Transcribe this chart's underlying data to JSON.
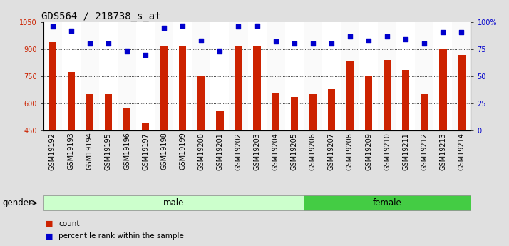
{
  "title": "GDS564 / 218738_s_at",
  "samples": [
    "GSM19192",
    "GSM19193",
    "GSM19194",
    "GSM19195",
    "GSM19196",
    "GSM19197",
    "GSM19198",
    "GSM19199",
    "GSM19200",
    "GSM19201",
    "GSM19202",
    "GSM19203",
    "GSM19204",
    "GSM19205",
    "GSM19206",
    "GSM19207",
    "GSM19208",
    "GSM19209",
    "GSM19210",
    "GSM19211",
    "GSM19212",
    "GSM19213",
    "GSM19214"
  ],
  "bar_values": [
    940,
    775,
    650,
    650,
    575,
    490,
    915,
    920,
    750,
    555,
    915,
    920,
    655,
    635,
    650,
    680,
    835,
    755,
    840,
    785,
    650,
    900,
    870
  ],
  "dot_values": [
    96,
    92,
    80,
    80,
    73,
    70,
    95,
    97,
    83,
    73,
    96,
    97,
    82,
    80,
    80,
    80,
    87,
    83,
    87,
    84,
    80,
    91,
    91
  ],
  "bar_color": "#cc2200",
  "dot_color": "#0000cc",
  "ylim_left": [
    450,
    1050
  ],
  "ylim_right": [
    0,
    100
  ],
  "yticks_left": [
    450,
    600,
    750,
    900,
    1050
  ],
  "yticks_right": [
    0,
    25,
    50,
    75,
    100
  ],
  "ytick_labels_right": [
    "0",
    "25",
    "50",
    "75",
    "100%"
  ],
  "grid_values": [
    600,
    750,
    900
  ],
  "male_samples": 14,
  "female_samples": 9,
  "male_label": "male",
  "female_label": "female",
  "gender_label": "gender",
  "legend_count": "count",
  "legend_pct": "percentile rank within the sample",
  "bg_color": "#e0e0e0",
  "plot_bg_color": "#ffffff",
  "male_band_color": "#ccffcc",
  "female_band_color": "#44cc44",
  "title_fontsize": 10,
  "tick_fontsize": 7,
  "axis_label_color_left": "#cc2200",
  "axis_label_color_right": "#0000cc"
}
